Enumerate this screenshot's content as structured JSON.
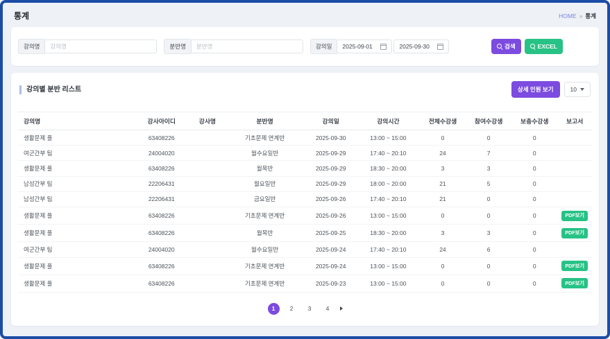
{
  "page": {
    "title": "통계",
    "breadcrumb": {
      "home": "HOME",
      "separator": "»",
      "current": "통계"
    }
  },
  "filters": {
    "lecture_name": {
      "label": "강의명",
      "placeholder": "강의명",
      "value": ""
    },
    "class_name": {
      "label": "분반명",
      "placeholder": "분반명",
      "value": ""
    },
    "lecture_date": {
      "label": "강의일",
      "start": "2025-09-01",
      "end": "2025-09-30"
    },
    "search_button": "검색",
    "excel_button": "EXCEL"
  },
  "list": {
    "title": "강의별 분반 리스트",
    "detail_button": "상세 인원 보기",
    "page_size": "10",
    "pdf_badge_label": "PDF보기",
    "columns": [
      "강의명",
      "강사아이디",
      "강사명",
      "분반명",
      "강의일",
      "강의시간",
      "전체수강생",
      "참여수강생",
      "보충수강생",
      "보고서"
    ],
    "column_keys": [
      "lecture",
      "instructor_id",
      "instructor",
      "class_name",
      "date",
      "time",
      "total",
      "attended",
      "makeup",
      "report"
    ],
    "rows": [
      {
        "lecture": "생활문제 풀",
        "instructor_id": "63408226",
        "instructor": "",
        "class_name": "기초문제 연계반",
        "date": "2025-09-30",
        "time": "13:00 ~ 15:00",
        "total": "0",
        "attended": "0",
        "makeup": "0",
        "report": false
      },
      {
        "lecture": "여군간부 팀",
        "instructor_id": "24004020",
        "instructor": "",
        "class_name": "월수요일반",
        "date": "2025-09-29",
        "time": "17:40 ~ 20:10",
        "total": "24",
        "attended": "7",
        "makeup": "0",
        "report": false
      },
      {
        "lecture": "생활문제 풀",
        "instructor_id": "63408226",
        "instructor": "",
        "class_name": "월목반",
        "date": "2025-09-29",
        "time": "18:30 ~ 20:00",
        "total": "3",
        "attended": "3",
        "makeup": "0",
        "report": false
      },
      {
        "lecture": "남성간부 팀",
        "instructor_id": "22206431",
        "instructor": "",
        "class_name": "월요일반",
        "date": "2025-09-29",
        "time": "18:00 ~ 20:00",
        "total": "21",
        "attended": "5",
        "makeup": "0",
        "report": false
      },
      {
        "lecture": "남성간부 팀",
        "instructor_id": "22206431",
        "instructor": "",
        "class_name": "금요일반",
        "date": "2025-09-26",
        "time": "17:40 ~ 20:10",
        "total": "21",
        "attended": "0",
        "makeup": "0",
        "report": false
      },
      {
        "lecture": "생활문제 풀",
        "instructor_id": "63408226",
        "instructor": "",
        "class_name": "기초문제 연계반",
        "date": "2025-09-26",
        "time": "13:00 ~ 15:00",
        "total": "0",
        "attended": "0",
        "makeup": "0",
        "report": true
      },
      {
        "lecture": "생활문제 풀",
        "instructor_id": "63408226",
        "instructor": "",
        "class_name": "월목반",
        "date": "2025-09-25",
        "time": "18:30 ~ 20:00",
        "total": "3",
        "attended": "3",
        "makeup": "0",
        "report": true
      },
      {
        "lecture": "여군간부 팀",
        "instructor_id": "24004020",
        "instructor": "",
        "class_name": "월수요일반",
        "date": "2025-09-24",
        "time": "17:40 ~ 20:10",
        "total": "24",
        "attended": "6",
        "makeup": "0",
        "report": false
      },
      {
        "lecture": "생활문제 풀",
        "instructor_id": "63408226",
        "instructor": "",
        "class_name": "기초문제 연계반",
        "date": "2025-09-24",
        "time": "13:00 ~ 15:00",
        "total": "0",
        "attended": "0",
        "makeup": "0",
        "report": true
      },
      {
        "lecture": "생활문제 풀",
        "instructor_id": "63408226",
        "instructor": "",
        "class_name": "기초문제 연계반",
        "date": "2025-09-23",
        "time": "13:00 ~ 15:00",
        "total": "0",
        "attended": "0",
        "makeup": "0",
        "report": true
      }
    ]
  },
  "pagination": {
    "pages": [
      "1",
      "2",
      "3",
      "4"
    ],
    "active": "1"
  },
  "colors": {
    "accent": "#7c4be0",
    "green": "#27c285",
    "frame_border": "#1c4da6",
    "background": "#eef1f6"
  }
}
